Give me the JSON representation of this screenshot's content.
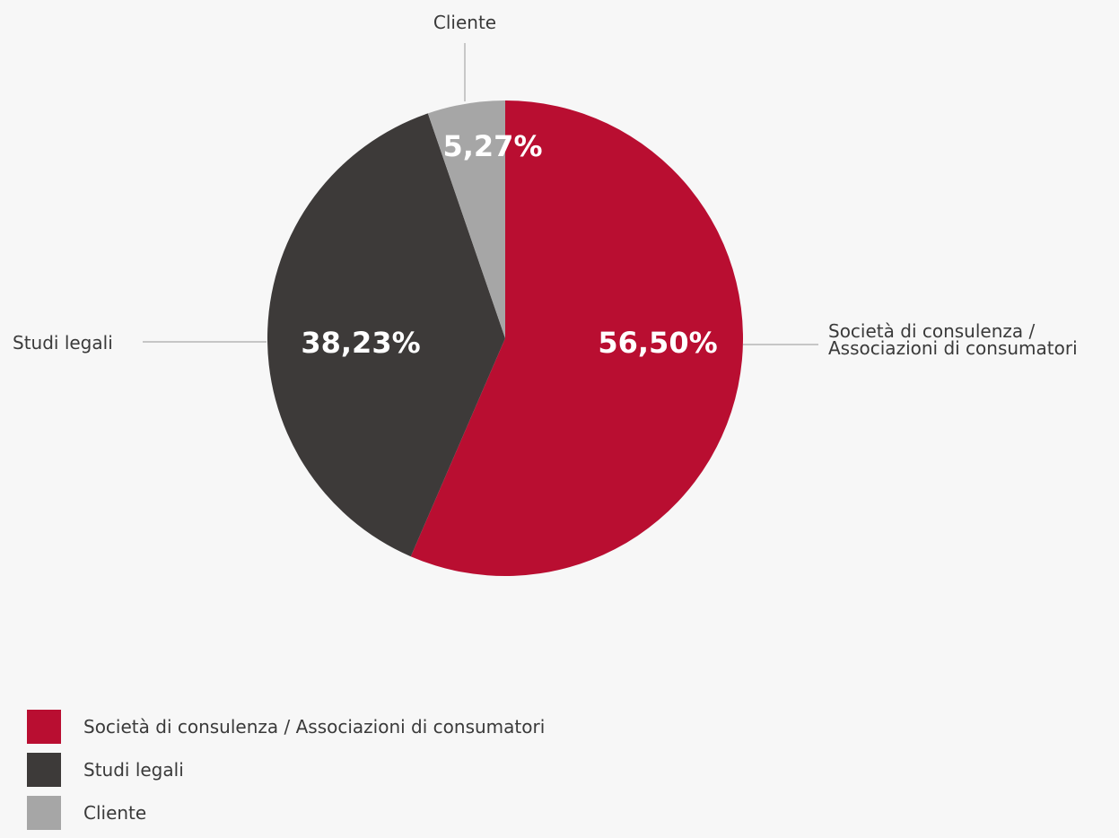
{
  "chart_data": {
    "type": "pie",
    "slices": [
      {
        "label": "Società di consulenza / Associazioni di consumatori",
        "label_lines": [
          "Società di consulenza /",
          "Associazioni di consumatori"
        ],
        "value": 56.5,
        "display": "56,50%",
        "color": "#b90e31"
      },
      {
        "label": "Studi legali",
        "label_lines": [
          "Studi legali"
        ],
        "value": 38.23,
        "display": "38,23%",
        "color": "#3d3a39"
      },
      {
        "label": "Cliente",
        "label_lines": [
          "Cliente"
        ],
        "value": 5.27,
        "display": "5,27%",
        "color": "#a6a6a6"
      }
    ],
    "legend": {
      "placement": "bottom-left",
      "items": [
        {
          "label": "Società di consulenza / Associazioni di consumatori",
          "color": "#b90e31"
        },
        {
          "label": "Studi legali",
          "color": "#3d3a39"
        },
        {
          "label": "Cliente",
          "color": "#a6a6a6"
        }
      ]
    },
    "start": "12 o'clock",
    "direction": "clockwise"
  }
}
